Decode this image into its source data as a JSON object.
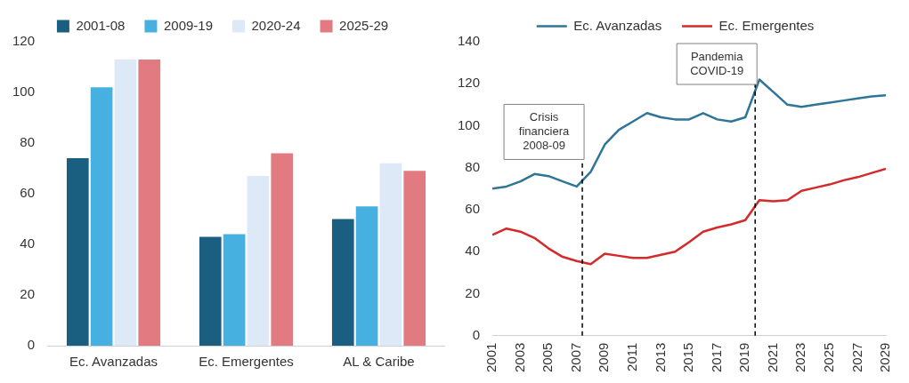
{
  "chart_data": [
    {
      "type": "bar",
      "categories": [
        "Ec. Avanzadas",
        "Ec. Emergentes",
        "AL & Caribe"
      ],
      "series": [
        {
          "name": "2001-08",
          "color": "#1a5e80",
          "values": [
            74,
            43,
            50
          ]
        },
        {
          "name": "2009-19",
          "color": "#46b1e1",
          "values": [
            102,
            44,
            55
          ]
        },
        {
          "name": "2020-24",
          "color": "#dde9f6",
          "values": [
            113,
            67,
            72
          ]
        },
        {
          "name": "2025-29",
          "color": "#e27a82",
          "values": [
            113,
            76,
            69
          ]
        }
      ],
      "ylim": [
        0,
        120
      ],
      "yticks": [
        0,
        20,
        40,
        60,
        80,
        100,
        120
      ],
      "grid": false,
      "legend": "top"
    },
    {
      "type": "line",
      "x": [
        2001,
        2002,
        2003,
        2004,
        2005,
        2006,
        2007,
        2008,
        2009,
        2010,
        2011,
        2012,
        2013,
        2014,
        2015,
        2016,
        2017,
        2018,
        2019,
        2020,
        2021,
        2022,
        2023,
        2024,
        2025,
        2026,
        2027,
        2028,
        2029
      ],
      "series": [
        {
          "name": "Ec. Avanzadas",
          "color": "#2e7598",
          "values": [
            70,
            71,
            73.5,
            77,
            76,
            73.5,
            71,
            78,
            91,
            98,
            102,
            106,
            104,
            103,
            103,
            106,
            103,
            102,
            104,
            122,
            116,
            110,
            109,
            110,
            111,
            112,
            113,
            114,
            114.5
          ]
        },
        {
          "name": "Ec. Emergentes",
          "color": "#d42a2a",
          "values": [
            48,
            51,
            49.5,
            46.5,
            41.5,
            37.5,
            35.5,
            34,
            39,
            38,
            37,
            37,
            38.5,
            40,
            44.5,
            49.5,
            51.5,
            53,
            55,
            64.5,
            64,
            64.5,
            69,
            70.5,
            72,
            74,
            75.5,
            77.5,
            79.5
          ]
        }
      ],
      "xlim": [
        2001,
        2029
      ],
      "xticks": [
        2001,
        2003,
        2005,
        2007,
        2009,
        2011,
        2013,
        2015,
        2017,
        2019,
        2021,
        2023,
        2025,
        2027,
        2029
      ],
      "ylim": [
        0,
        140
      ],
      "yticks": [
        0,
        20,
        40,
        60,
        80,
        100,
        120,
        140
      ],
      "grid": false,
      "legend": "top",
      "marker": "none",
      "line_style": "solid",
      "ref_lines": [
        {
          "axis": "x",
          "value": 2007.4,
          "label": "Crisis financiera 2008-09",
          "line_style": "dashed",
          "color": "#000000"
        },
        {
          "axis": "x",
          "value": 2019.7,
          "label": "Pandemia COVID-19",
          "line_style": "dashed",
          "color": "#000000"
        }
      ]
    }
  ]
}
